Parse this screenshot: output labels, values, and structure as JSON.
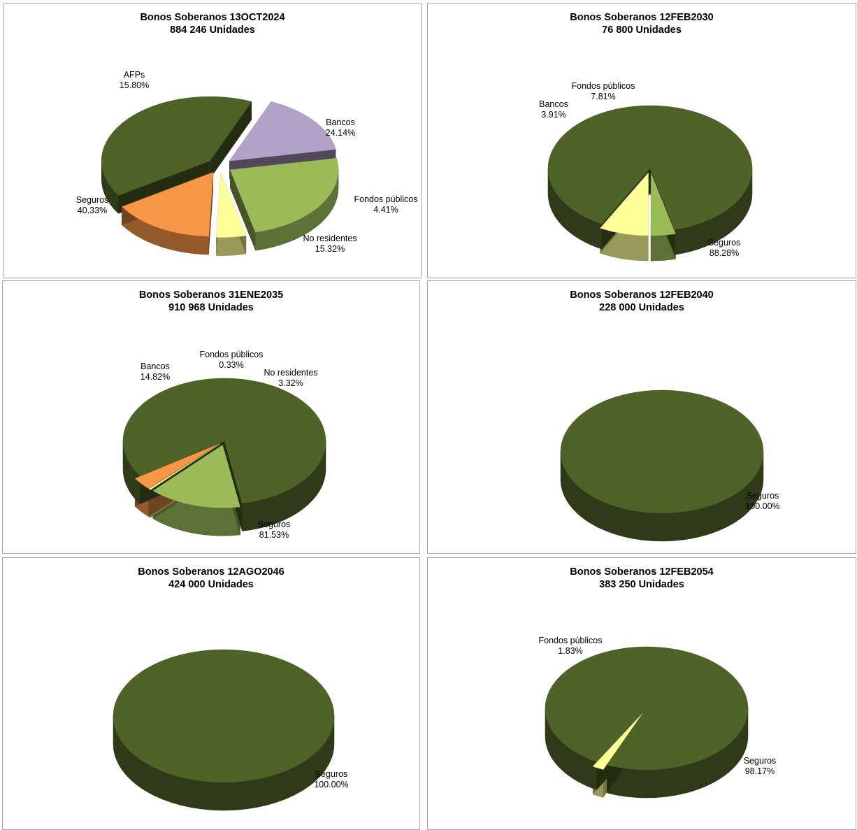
{
  "colors": {
    "Seguros": "#4f6228",
    "AFPs": "#b3a2c7",
    "Bancos": "#9bbb59",
    "Fondos públicos": "#ffff99",
    "No residentes": "#f79646"
  },
  "chart_data": [
    {
      "type": "pie",
      "title": "Bonos Soberanos 13OCT2024",
      "subtitle": "884 246 Unidades",
      "slices": [
        {
          "label": "Seguros",
          "value": 40.33,
          "value_label": "40.33%"
        },
        {
          "label": "AFPs",
          "value": 15.8,
          "value_label": "15.80%"
        },
        {
          "label": "Bancos",
          "value": 24.14,
          "value_label": "24.14%"
        },
        {
          "label": "Fondos públicos",
          "value": 4.41,
          "value_label": "4.41%"
        },
        {
          "label": "No residentes",
          "value": 15.32,
          "value_label": "15.32%"
        }
      ]
    },
    {
      "type": "pie",
      "title": "Bonos Soberanos 12FEB2030",
      "subtitle": "76 800 Unidades",
      "slices": [
        {
          "label": "Bancos",
          "value": 3.91,
          "value_label": "3.91%"
        },
        {
          "label": "Fondos públicos",
          "value": 7.81,
          "value_label": "7.81%"
        },
        {
          "label": "Seguros",
          "value": 88.28,
          "value_label": "88.28%"
        }
      ]
    },
    {
      "type": "pie",
      "title": "Bonos Soberanos 31ENE2035",
      "subtitle": "910 968 Unidades",
      "slices": [
        {
          "label": "Bancos",
          "value": 14.82,
          "value_label": "14.82%"
        },
        {
          "label": "Fondos públicos",
          "value": 0.33,
          "value_label": "0.33%"
        },
        {
          "label": "No residentes",
          "value": 3.32,
          "value_label": "3.32%"
        },
        {
          "label": "Seguros",
          "value": 81.53,
          "value_label": "81.53%"
        }
      ]
    },
    {
      "type": "pie",
      "title": "Bonos Soberanos 12FEB2040",
      "subtitle": "228 000 Unidades",
      "slices": [
        {
          "label": "Seguros",
          "value": 100.0,
          "value_label": "100.00%"
        }
      ]
    },
    {
      "type": "pie",
      "title": "Bonos Soberanos 12AGO2046",
      "subtitle": "424 000 Unidades",
      "slices": [
        {
          "label": "Seguros",
          "value": 100.0,
          "value_label": "100.00%"
        }
      ]
    },
    {
      "type": "pie",
      "title": "Bonos Soberanos 12FEB2054",
      "subtitle": "383 250 Unidades",
      "slices": [
        {
          "label": "Fondos públicos",
          "value": 1.83,
          "value_label": "1.83%"
        },
        {
          "label": "Seguros",
          "value": 98.17,
          "value_label": "98.17%"
        }
      ]
    }
  ]
}
